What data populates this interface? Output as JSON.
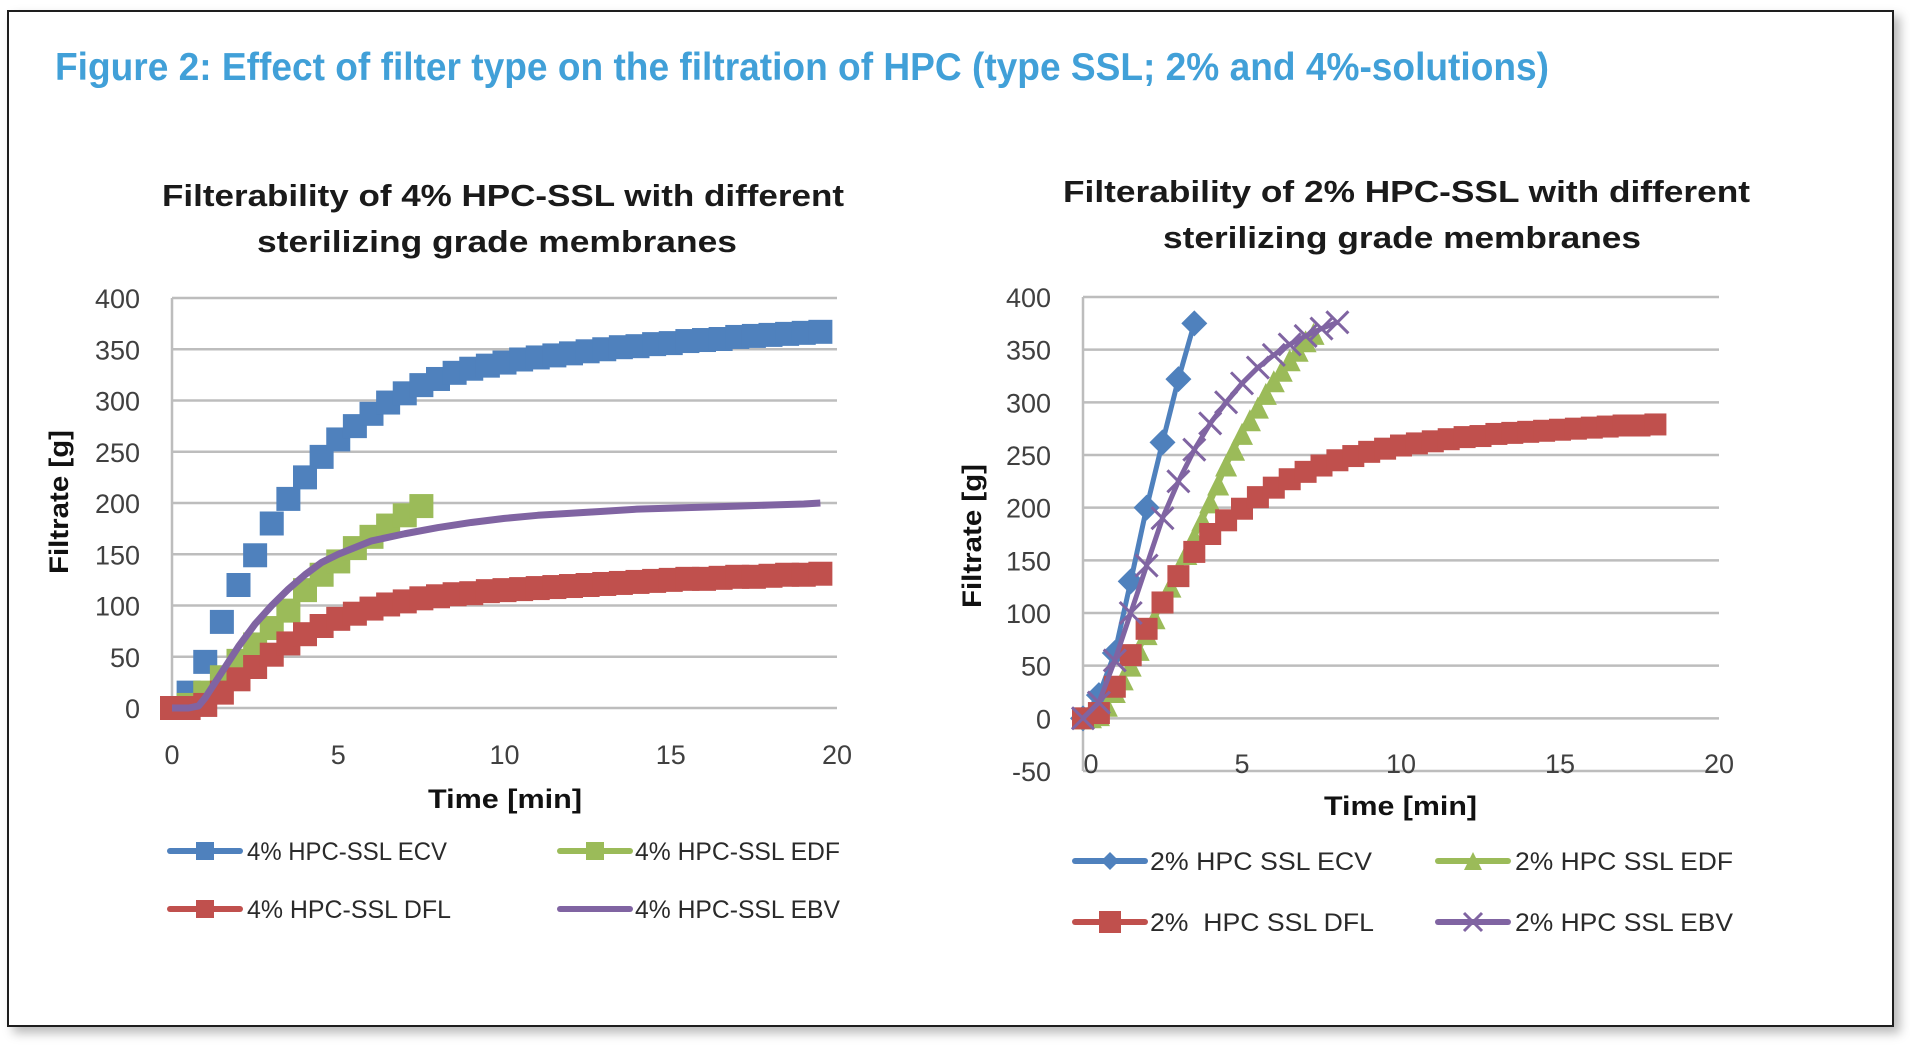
{
  "figure": {
    "title": "Figure 2: Effect of filter type on the filtration of HPC (type SSL; 2% and 4%-solutions)",
    "title_color": "#41A0D8"
  },
  "colors": {
    "ecv": "#4F81BD",
    "dfl": "#C0504D",
    "edf": "#9BBB59",
    "ebv": "#8064A2"
  },
  "chart_data": [
    {
      "type": "line",
      "title": [
        "Filterability of 4% HPC-SSL with different",
        "sterilizing  grade membranes"
      ],
      "xlabel": "Time [min]",
      "ylabel": "Filtrate [g]",
      "xlim": [
        0,
        20
      ],
      "ylim": [
        0,
        400
      ],
      "xticks": [
        0,
        5,
        10,
        15,
        20
      ],
      "yticks": [
        0,
        50,
        100,
        150,
        200,
        250,
        300,
        350,
        400
      ],
      "grid": true,
      "legend_position": "bottom",
      "series": [
        {
          "name": "4% HPC-SSL ECV",
          "key": "ecv",
          "marker": "square",
          "line": false,
          "x": [
            0,
            0.5,
            1,
            1.5,
            2,
            2.5,
            3,
            3.5,
            4,
            4.5,
            5,
            5.5,
            6,
            6.5,
            7,
            7.5,
            8,
            8.5,
            9,
            9.5,
            10,
            10.5,
            11,
            11.5,
            12,
            12.5,
            13,
            13.5,
            14,
            14.5,
            15,
            15.5,
            16,
            16.5,
            17,
            17.5,
            18,
            18.5,
            19,
            19.5
          ],
          "y": [
            0,
            15,
            45,
            84,
            120,
            149,
            180,
            204,
            225,
            245,
            262,
            275,
            287,
            298,
            307,
            315,
            321,
            327,
            331,
            334,
            337,
            340,
            342,
            344,
            346,
            348,
            350,
            352,
            353,
            355,
            356,
            358,
            359,
            360,
            362,
            363,
            364,
            365,
            366,
            367
          ]
        },
        {
          "name": "4% HPC-SSL EDF",
          "key": "edf",
          "marker": "square",
          "line": false,
          "x": [
            0,
            0.5,
            1,
            1.5,
            2,
            2.5,
            3,
            3.5,
            4,
            4.5,
            5,
            5.5,
            6,
            6.5,
            7,
            7.5
          ],
          "y": [
            0,
            3,
            15,
            30,
            46,
            62,
            78,
            95,
            115,
            130,
            143,
            156,
            167,
            178,
            188,
            197
          ]
        },
        {
          "name": "4% HPC-SSL DFL",
          "key": "dfl",
          "marker": "square",
          "line": false,
          "x": [
            0,
            0.5,
            1,
            1.5,
            2,
            2.5,
            3,
            3.5,
            4,
            4.5,
            5,
            5.5,
            6,
            6.5,
            7,
            7.5,
            8,
            8.5,
            9,
            9.5,
            10,
            10.5,
            11,
            11.5,
            12,
            12.5,
            13,
            13.5,
            14,
            14.5,
            15,
            15.5,
            16,
            16.5,
            17,
            17.5,
            18,
            18.5,
            19,
            19.5
          ],
          "y": [
            0,
            0,
            3,
            15,
            28,
            40,
            52,
            63,
            72,
            80,
            87,
            92,
            97,
            101,
            104,
            107,
            109,
            111,
            112,
            114,
            115,
            116,
            117,
            118,
            119,
            120,
            121,
            122,
            123,
            124,
            125,
            126,
            126,
            127,
            128,
            128,
            129,
            130,
            130,
            131
          ]
        },
        {
          "name": "4% HPC-SSL EBV",
          "key": "ebv",
          "marker": "none",
          "line": true,
          "x": [
            0,
            0.5,
            0.8,
            1,
            1.5,
            2,
            2.5,
            3,
            3.5,
            4,
            4.5,
            5,
            6,
            7,
            8,
            9,
            10,
            11,
            12,
            13,
            14,
            15,
            16,
            17,
            18,
            19,
            19.5
          ],
          "y": [
            0,
            0,
            2,
            10,
            35,
            60,
            82,
            100,
            116,
            130,
            142,
            150,
            163,
            170,
            176,
            181,
            185,
            188,
            190,
            192,
            194,
            195,
            196,
            197,
            198,
            199,
            200
          ]
        }
      ]
    },
    {
      "type": "line",
      "title": [
        "Filterability of 2% HPC-SSL with different",
        "sterilizing grade membranes"
      ],
      "xlabel": "Time [min]",
      "ylabel": "Filtrate [g]",
      "xlim": [
        0,
        20
      ],
      "ylim": [
        -50,
        400
      ],
      "xticks": [
        0,
        5,
        10,
        15,
        20
      ],
      "yticks": [
        -50,
        0,
        50,
        100,
        150,
        200,
        250,
        300,
        350,
        400
      ],
      "grid": true,
      "legend_position": "bottom",
      "series": [
        {
          "name": "2% HPC SSL ECV",
          "key": "ecv",
          "marker": "diamond",
          "line": true,
          "x": [
            0,
            0.5,
            1,
            1.5,
            2,
            2.5,
            3,
            3.5
          ],
          "y": [
            0,
            22,
            62,
            130,
            200,
            262,
            322,
            375
          ]
        },
        {
          "name": "2% HPC SSL EDF",
          "key": "edf",
          "marker": "triangle",
          "line": true,
          "x": [
            0,
            0.25,
            0.5,
            0.75,
            1,
            1.25,
            1.5,
            1.75,
            2,
            2.25,
            2.5,
            2.75,
            3,
            3.25,
            3.5,
            3.75,
            4,
            4.25,
            4.5,
            4.75,
            5,
            5.25,
            5.5,
            5.75,
            6,
            6.25,
            6.5,
            6.75,
            7,
            7.25
          ],
          "y": [
            0,
            1,
            3,
            12,
            25,
            37,
            50,
            65,
            80,
            95,
            110,
            125,
            140,
            156,
            172,
            188,
            205,
            222,
            240,
            255,
            270,
            283,
            295,
            308,
            320,
            330,
            340,
            349,
            358,
            365
          ]
        },
        {
          "name": "2%  HPC SSL DFL",
          "key": "dfl",
          "marker": "square",
          "line": false,
          "x": [
            0,
            0.5,
            1,
            1.5,
            2,
            2.5,
            3,
            3.5,
            4,
            4.5,
            5,
            5.5,
            6,
            6.5,
            7,
            7.5,
            8,
            8.5,
            9,
            9.5,
            10,
            10.5,
            11,
            11.5,
            12,
            12.5,
            13,
            13.5,
            14,
            14.5,
            15,
            15.5,
            16,
            16.5,
            17,
            17.5,
            18
          ],
          "y": [
            0,
            5,
            30,
            60,
            85,
            110,
            135,
            158,
            175,
            188,
            199,
            210,
            219,
            227,
            234,
            240,
            245,
            249,
            253,
            256,
            259,
            261,
            263,
            265,
            267,
            268,
            270,
            271,
            272,
            273,
            274,
            275,
            276,
            277,
            278,
            278,
            279
          ]
        },
        {
          "name": "2% HPC SSL EBV",
          "key": "ebv",
          "marker": "x",
          "line": true,
          "x": [
            0,
            0.5,
            1,
            1.5,
            2,
            2.5,
            3,
            3.5,
            4,
            4.5,
            5,
            5.5,
            6,
            6.5,
            7,
            7.5,
            8
          ],
          "y": [
            0,
            15,
            55,
            100,
            145,
            190,
            225,
            255,
            280,
            300,
            318,
            333,
            345,
            355,
            363,
            370,
            376
          ]
        }
      ]
    }
  ]
}
